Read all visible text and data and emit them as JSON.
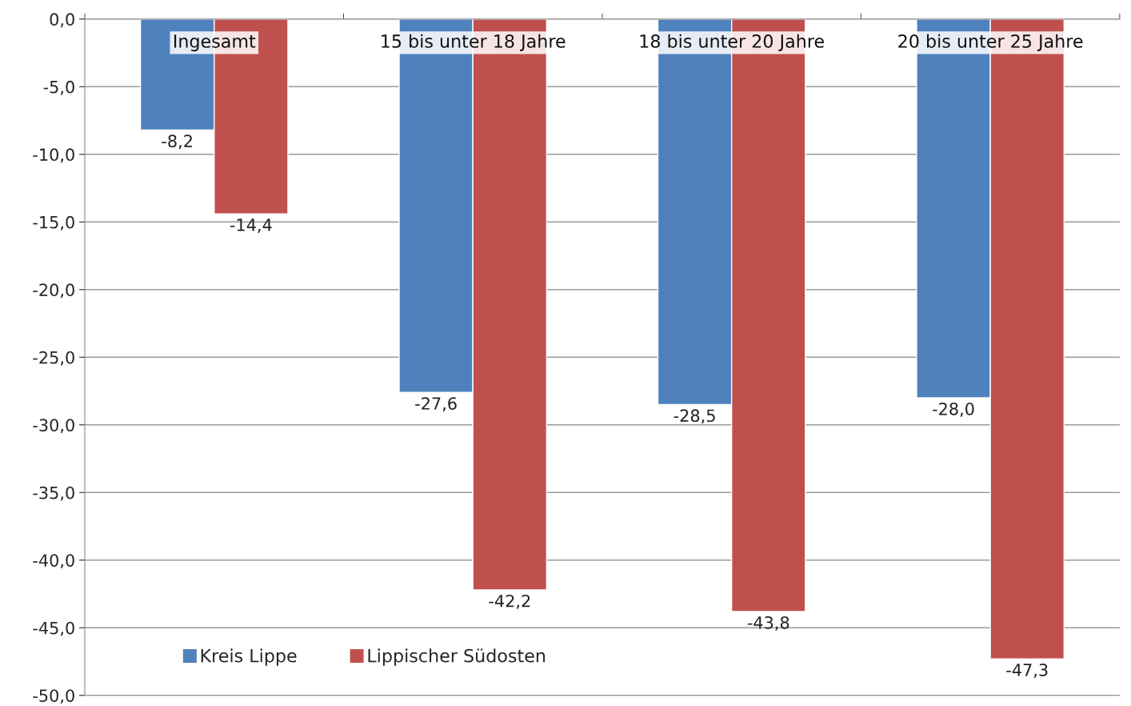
{
  "chart_data": {
    "type": "bar",
    "categories": [
      "Ingesamt",
      "15 bis unter 18 Jahre",
      "18 bis unter 20 Jahre",
      "20 bis unter 25 Jahre"
    ],
    "series": [
      {
        "name": "Kreis Lippe",
        "color": "#4f81bd",
        "values": [
          -8.2,
          -27.6,
          -28.5,
          -28.0
        ],
        "value_labels": [
          "-8,2",
          "-27,6",
          "-28,5",
          "-28,0"
        ]
      },
      {
        "name": "Lippischer Südosten",
        "color": "#c0504d",
        "values": [
          -14.4,
          -42.2,
          -43.8,
          -47.3
        ],
        "value_labels": [
          "-14,4",
          "-42,2",
          "-43,8",
          "-47,3"
        ]
      }
    ],
    "ylim": [
      -50,
      0
    ],
    "yticks": [
      {
        "value": 0,
        "label": "0,0"
      },
      {
        "value": -5,
        "label": "-5,0"
      },
      {
        "value": -10,
        "label": "-10,0"
      },
      {
        "value": -15,
        "label": "-15,0"
      },
      {
        "value": -20,
        "label": "-20,0"
      },
      {
        "value": -25,
        "label": "-25,0"
      },
      {
        "value": -30,
        "label": "-30,0"
      },
      {
        "value": -35,
        "label": "-35,0"
      },
      {
        "value": -40,
        "label": "-40,0"
      },
      {
        "value": -45,
        "label": "-45,0"
      },
      {
        "value": -50,
        "label": "-50,0"
      }
    ],
    "grid": "y",
    "legend": "bottom left"
  }
}
